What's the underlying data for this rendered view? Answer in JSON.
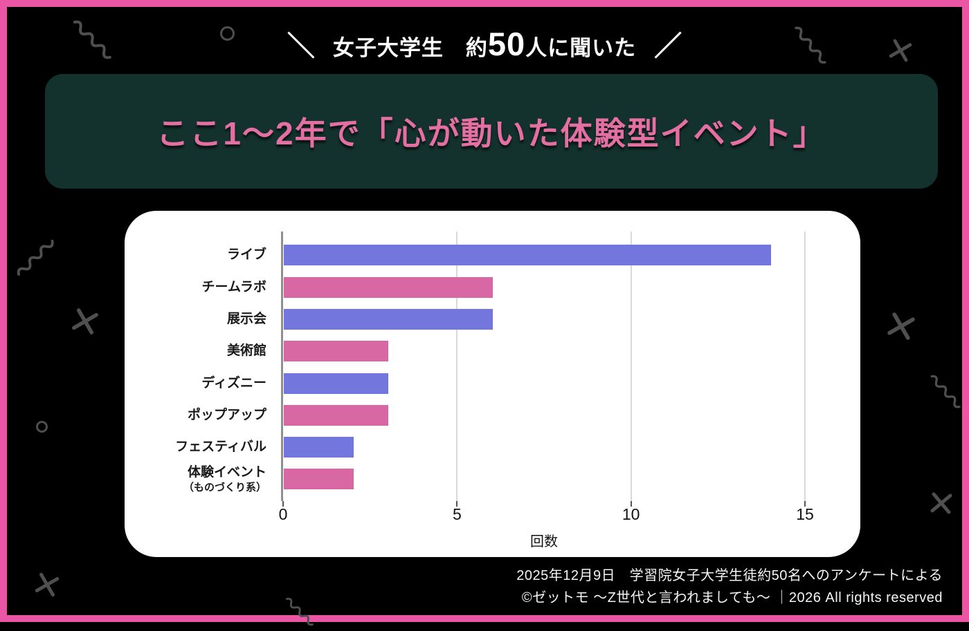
{
  "header": {
    "left_slash": "＼",
    "part1": "女子大学生　約",
    "number": "50",
    "part2": "人に聞いた",
    "right_slash": "／"
  },
  "title": {
    "text": "ここ1〜2年で「心が動いた体験型イベント」"
  },
  "chart_data": {
    "type": "bar",
    "orientation": "horizontal",
    "title": "ここ1〜2年で「心が動いた体験型イベント」",
    "categories": [
      "ライブ",
      "チームラボ",
      "展示会",
      "美術館",
      "ディズニー",
      "ポップアップ",
      "フェスティバル",
      "体験イベント（ものづくり系）"
    ],
    "category_lines": [
      [
        "ライブ"
      ],
      [
        "チームラボ"
      ],
      [
        "展示会"
      ],
      [
        "美術館"
      ],
      [
        "ディズニー"
      ],
      [
        "ポップアップ"
      ],
      [
        "フェスティバル"
      ],
      [
        "体験イベント",
        "（ものづくり系）"
      ]
    ],
    "values": [
      14,
      6,
      6,
      3,
      3,
      3,
      2,
      2
    ],
    "xlabel": "回数",
    "ylabel": "",
    "xticks": [
      0,
      5,
      10,
      15
    ],
    "xlim": [
      0,
      16
    ],
    "grid": true,
    "legend": "none",
    "bar_colors": [
      "#7276dd",
      "#d768a3"
    ]
  },
  "footer": {
    "line1": "2025年12月9日　学習院女子大学生徒約50名へのアンケートによる",
    "line2": "©ゼットモ 〜Z世代と言われましても〜 ｜2026 All rights reserved"
  },
  "colors": {
    "frame-pink": "#ea56a3",
    "box-green": "#14322d",
    "title-pink": "#e46fa2",
    "bar-blue": "#7276dd",
    "bar-pink": "#d768a3",
    "grid": "#d9d9d9",
    "axis": "#8f8f8f",
    "decor": "#4f4f4f"
  },
  "icons": {
    "squiggle_icon": "〰",
    "cross_icon": "✕",
    "circle_icon": "○"
  }
}
